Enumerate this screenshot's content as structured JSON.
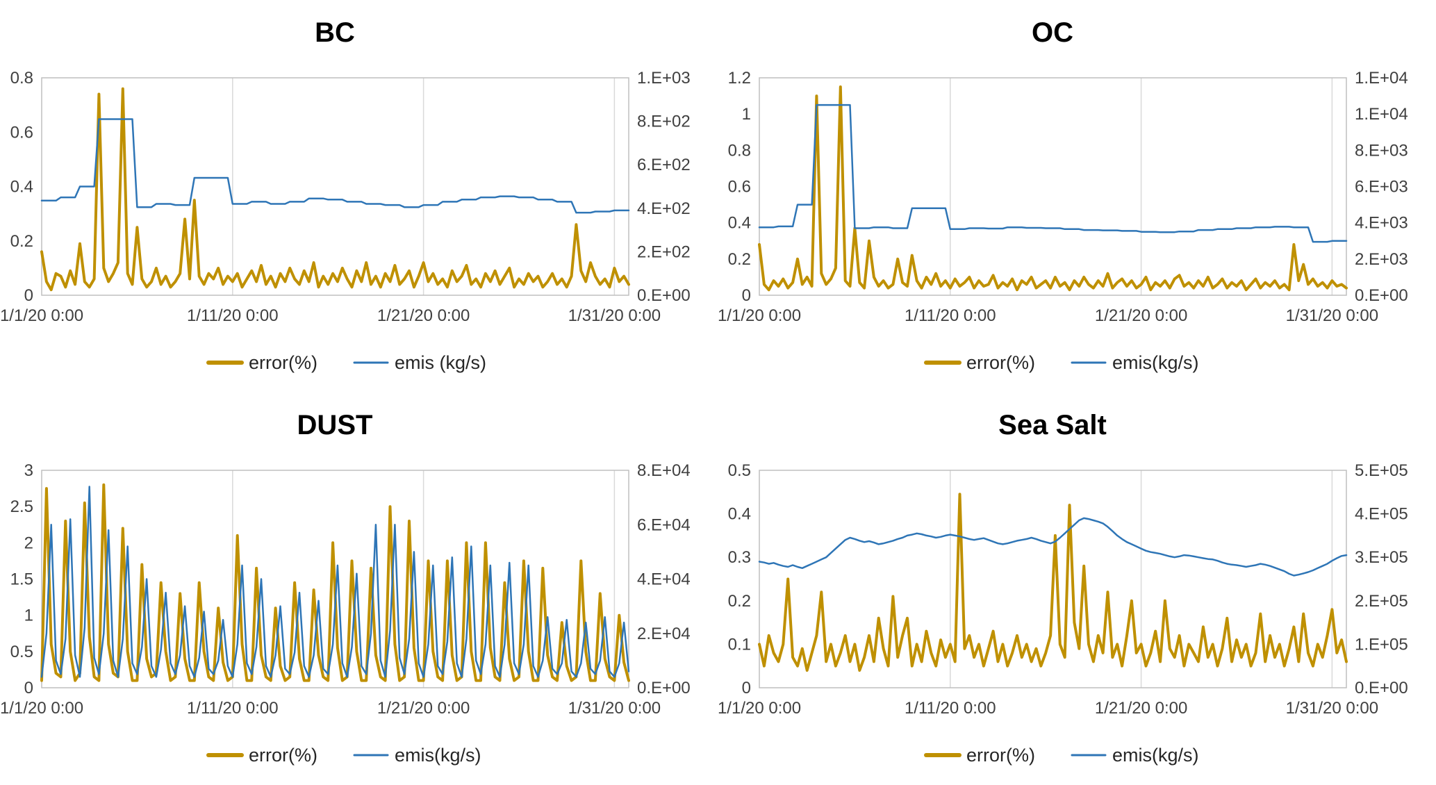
{
  "page": {
    "background": "#ffffff"
  },
  "colors": {
    "error_line": "#BF9000",
    "emis_line": "#2E75B6",
    "axis_text": "#404040",
    "title_text": "#000000",
    "gridline": "#D9D9D9",
    "plot_border": "#BFBFBF"
  },
  "chart_data": [
    {
      "type": "line",
      "title": "BC",
      "grid": "vertical-only",
      "legend_position": "bottom",
      "x_tick_labels": [
        "1/1/20 0:00",
        "1/11/20 0:00",
        "1/21/20 0:00",
        "1/31/20 0:00"
      ],
      "x_tick_days": [
        0,
        10,
        20,
        30
      ],
      "x_domain_days": [
        0,
        30.75
      ],
      "x_points_per_day": 4,
      "left_axis": {
        "ticks": [
          "0",
          "0.2",
          "0.4",
          "0.6",
          "0.8"
        ],
        "min": 0,
        "max": 0.8
      },
      "right_axis": {
        "ticks": [
          "0.E+00",
          "2.E+02",
          "4.E+02",
          "6.E+02",
          "8.E+02",
          "1.E+03"
        ],
        "min": 0,
        "max": 1000
      },
      "series": [
        {
          "name": "error(%)",
          "axis": "left",
          "color": "#BF9000",
          "width": 4,
          "values": [
            0.16,
            0.05,
            0.02,
            0.08,
            0.07,
            0.03,
            0.09,
            0.04,
            0.19,
            0.05,
            0.03,
            0.06,
            0.74,
            0.1,
            0.05,
            0.08,
            0.12,
            0.76,
            0.08,
            0.04,
            0.25,
            0.06,
            0.03,
            0.05,
            0.1,
            0.04,
            0.07,
            0.03,
            0.05,
            0.08,
            0.28,
            0.06,
            0.35,
            0.07,
            0.04,
            0.08,
            0.06,
            0.1,
            0.04,
            0.07,
            0.05,
            0.08,
            0.03,
            0.06,
            0.09,
            0.05,
            0.11,
            0.04,
            0.07,
            0.03,
            0.08,
            0.05,
            0.1,
            0.06,
            0.04,
            0.09,
            0.05,
            0.12,
            0.03,
            0.07,
            0.04,
            0.08,
            0.05,
            0.1,
            0.06,
            0.03,
            0.09,
            0.05,
            0.12,
            0.04,
            0.07,
            0.03,
            0.08,
            0.05,
            0.11,
            0.04,
            0.06,
            0.09,
            0.03,
            0.07,
            0.12,
            0.05,
            0.08,
            0.04,
            0.06,
            0.03,
            0.09,
            0.05,
            0.07,
            0.11,
            0.04,
            0.06,
            0.03,
            0.08,
            0.05,
            0.09,
            0.04,
            0.07,
            0.1,
            0.03,
            0.06,
            0.04,
            0.08,
            0.05,
            0.07,
            0.03,
            0.05,
            0.08,
            0.04,
            0.06,
            0.03,
            0.07,
            0.26,
            0.09,
            0.05,
            0.12,
            0.07,
            0.04,
            0.06,
            0.03,
            0.1,
            0.05,
            0.07,
            0.04
          ]
        },
        {
          "name": "emis (kg/s)",
          "axis": "right",
          "color": "#2E75B6",
          "width": 2.5,
          "step": true,
          "values_daily": [
            435,
            450,
            500,
            810,
            810,
            405,
            420,
            415,
            540,
            540,
            420,
            430,
            420,
            430,
            445,
            440,
            430,
            420,
            415,
            405,
            415,
            430,
            440,
            450,
            455,
            450,
            440,
            430,
            380,
            385,
            390
          ]
        }
      ]
    },
    {
      "type": "line",
      "title": "OC",
      "grid": "vertical-only",
      "legend_position": "bottom",
      "x_tick_labels": [
        "1/1/20 0:00",
        "1/11/20 0:00",
        "1/21/20 0:00",
        "1/31/20 0:00"
      ],
      "x_tick_days": [
        0,
        10,
        20,
        30
      ],
      "x_domain_days": [
        0,
        30.75
      ],
      "x_points_per_day": 4,
      "left_axis": {
        "ticks": [
          "0",
          "0.2",
          "0.4",
          "0.6",
          "0.8",
          "1",
          "1.2"
        ],
        "min": 0,
        "max": 1.2
      },
      "right_axis": {
        "ticks": [
          "0.E+00",
          "2.E+03",
          "4.E+03",
          "6.E+03",
          "8.E+03",
          "1.E+04",
          "1.E+04"
        ],
        "min": 0,
        "max": 12000
      },
      "series": [
        {
          "name": "error(%)",
          "axis": "left",
          "color": "#BF9000",
          "width": 4,
          "values": [
            0.28,
            0.06,
            0.03,
            0.08,
            0.05,
            0.09,
            0.04,
            0.07,
            0.2,
            0.06,
            0.1,
            0.05,
            1.1,
            0.12,
            0.06,
            0.09,
            0.15,
            1.15,
            0.08,
            0.05,
            0.37,
            0.07,
            0.04,
            0.3,
            0.1,
            0.05,
            0.08,
            0.04,
            0.06,
            0.2,
            0.07,
            0.05,
            0.22,
            0.08,
            0.04,
            0.1,
            0.06,
            0.12,
            0.05,
            0.08,
            0.04,
            0.09,
            0.05,
            0.07,
            0.1,
            0.04,
            0.08,
            0.05,
            0.06,
            0.11,
            0.04,
            0.07,
            0.05,
            0.09,
            0.03,
            0.08,
            0.06,
            0.1,
            0.04,
            0.06,
            0.08,
            0.04,
            0.1,
            0.05,
            0.07,
            0.03,
            0.08,
            0.05,
            0.1,
            0.06,
            0.04,
            0.08,
            0.05,
            0.12,
            0.04,
            0.07,
            0.09,
            0.05,
            0.08,
            0.04,
            0.06,
            0.1,
            0.03,
            0.07,
            0.05,
            0.08,
            0.04,
            0.09,
            0.11,
            0.05,
            0.07,
            0.04,
            0.08,
            0.05,
            0.1,
            0.04,
            0.06,
            0.09,
            0.04,
            0.07,
            0.05,
            0.08,
            0.03,
            0.06,
            0.09,
            0.04,
            0.07,
            0.05,
            0.08,
            0.04,
            0.06,
            0.03,
            0.28,
            0.08,
            0.17,
            0.06,
            0.09,
            0.05,
            0.07,
            0.04,
            0.08,
            0.05,
            0.06,
            0.04
          ]
        },
        {
          "name": "emis(kg/s)",
          "axis": "right",
          "color": "#2E75B6",
          "width": 2.5,
          "step": true,
          "values_daily": [
            3750,
            3800,
            5000,
            10500,
            10500,
            3700,
            3750,
            3700,
            4800,
            4800,
            3650,
            3700,
            3680,
            3750,
            3720,
            3700,
            3650,
            3600,
            3580,
            3550,
            3500,
            3480,
            3520,
            3600,
            3650,
            3700,
            3750,
            3780,
            3750,
            2950,
            3000
          ]
        }
      ]
    },
    {
      "type": "line",
      "title": "DUST",
      "grid": "vertical-only",
      "legend_position": "bottom",
      "x_tick_labels": [
        "1/1/20 0:00",
        "1/11/20 0:00",
        "1/21/20 0:00",
        "1/31/20 0:00"
      ],
      "x_tick_days": [
        0,
        10,
        20,
        30
      ],
      "x_domain_days": [
        0,
        30.75
      ],
      "x_points_per_day": 4,
      "left_axis": {
        "ticks": [
          "0",
          "0.5",
          "1",
          "1.5",
          "2",
          "2.5",
          "3"
        ],
        "min": 0,
        "max": 3
      },
      "right_axis": {
        "ticks": [
          "0.E+00",
          "2.E+04",
          "4.E+04",
          "6.E+04",
          "8.E+04"
        ],
        "min": 0,
        "max": 80000
      },
      "series": [
        {
          "name": "error(%)",
          "axis": "left",
          "color": "#BF9000",
          "width": 4,
          "values": [
            0.1,
            2.75,
            0.6,
            0.2,
            0.15,
            2.3,
            0.5,
            0.1,
            0.2,
            2.55,
            0.7,
            0.15,
            0.1,
            2.8,
            0.6,
            0.2,
            0.15,
            2.2,
            0.5,
            0.1,
            0.1,
            1.7,
            0.4,
            0.15,
            0.2,
            1.45,
            0.5,
            0.1,
            0.15,
            1.3,
            0.4,
            0.1,
            0.1,
            1.45,
            0.5,
            0.15,
            0.1,
            1.1,
            0.35,
            0.1,
            0.15,
            2.1,
            0.6,
            0.1,
            0.1,
            1.65,
            0.45,
            0.15,
            0.1,
            1.1,
            0.3,
            0.1,
            0.15,
            1.45,
            0.4,
            0.1,
            0.1,
            1.35,
            0.45,
            0.15,
            0.1,
            2.0,
            0.55,
            0.1,
            0.15,
            1.75,
            0.5,
            0.1,
            0.1,
            1.65,
            0.45,
            0.15,
            0.1,
            2.5,
            0.6,
            0.1,
            0.15,
            2.3,
            0.55,
            0.1,
            0.1,
            1.75,
            0.5,
            0.15,
            0.1,
            1.75,
            0.45,
            0.1,
            0.15,
            2.0,
            0.5,
            0.1,
            0.1,
            2.0,
            0.55,
            0.15,
            0.1,
            1.45,
            0.4,
            0.1,
            0.15,
            1.75,
            0.5,
            0.1,
            0.1,
            1.65,
            0.45,
            0.15,
            0.1,
            0.9,
            0.3,
            0.1,
            0.15,
            1.75,
            0.5,
            0.1,
            0.1,
            1.3,
            0.4,
            0.15,
            0.1,
            1.0,
            0.35,
            0.1
          ]
        },
        {
          "name": "emis(kg/s)",
          "axis": "right",
          "color": "#2E75B6",
          "width": 2.5,
          "values": [
            4000,
            20000,
            60000,
            10000,
            5000,
            18000,
            62000,
            12000,
            4000,
            22000,
            74000,
            11000,
            5000,
            20000,
            58000,
            10000,
            4000,
            18000,
            52000,
            9000,
            5000,
            15000,
            40000,
            8000,
            4000,
            14000,
            35000,
            9000,
            5000,
            12000,
            30000,
            8000,
            4000,
            11000,
            28000,
            7000,
            5000,
            10000,
            25000,
            8000,
            4000,
            16000,
            45000,
            9000,
            5000,
            15000,
            40000,
            8000,
            4000,
            12000,
            30000,
            7000,
            5000,
            13000,
            35000,
            8000,
            4000,
            12000,
            32000,
            7000,
            5000,
            16000,
            45000,
            9000,
            4000,
            15000,
            42000,
            8000,
            5000,
            20000,
            60000,
            10000,
            4000,
            21000,
            60000,
            11000,
            5000,
            18000,
            50000,
            9000,
            4000,
            16000,
            45000,
            8000,
            5000,
            17000,
            48000,
            9000,
            4000,
            18000,
            52000,
            10000,
            5000,
            16000,
            45000,
            8000,
            4000,
            16000,
            46000,
            9000,
            5000,
            16000,
            45000,
            8000,
            4000,
            10000,
            26000,
            7000,
            5000,
            9000,
            25000,
            6000,
            4000,
            9000,
            24000,
            7000,
            5000,
            10000,
            26000,
            6000,
            4000,
            9000,
            24000,
            6000
          ]
        }
      ]
    },
    {
      "type": "line",
      "title": "Sea Salt",
      "grid": "vertical-only",
      "legend_position": "bottom",
      "x_tick_labels": [
        "1/1/20 0:00",
        "1/11/20 0:00",
        "1/21/20 0:00",
        "1/31/20 0:00"
      ],
      "x_tick_days": [
        0,
        10,
        20,
        30
      ],
      "x_domain_days": [
        0,
        30.75
      ],
      "x_points_per_day": 4,
      "left_axis": {
        "ticks": [
          "0",
          "0.1",
          "0.2",
          "0.3",
          "0.4",
          "0.5"
        ],
        "min": 0,
        "max": 0.5
      },
      "right_axis": {
        "ticks": [
          "0.E+00",
          "1.E+05",
          "2.E+05",
          "3.E+05",
          "4.E+05",
          "5.E+05"
        ],
        "min": 0,
        "max": 500000
      },
      "series": [
        {
          "name": "error(%)",
          "axis": "left",
          "color": "#BF9000",
          "width": 4,
          "values": [
            0.1,
            0.05,
            0.12,
            0.08,
            0.06,
            0.1,
            0.25,
            0.07,
            0.05,
            0.09,
            0.04,
            0.08,
            0.12,
            0.22,
            0.06,
            0.1,
            0.05,
            0.08,
            0.12,
            0.06,
            0.1,
            0.04,
            0.07,
            0.12,
            0.06,
            0.16,
            0.09,
            0.05,
            0.21,
            0.07,
            0.12,
            0.16,
            0.05,
            0.1,
            0.06,
            0.13,
            0.08,
            0.05,
            0.11,
            0.07,
            0.1,
            0.06,
            0.445,
            0.09,
            0.12,
            0.07,
            0.1,
            0.05,
            0.09,
            0.13,
            0.06,
            0.1,
            0.05,
            0.08,
            0.12,
            0.07,
            0.1,
            0.06,
            0.09,
            0.05,
            0.08,
            0.12,
            0.35,
            0.1,
            0.07,
            0.42,
            0.15,
            0.09,
            0.28,
            0.1,
            0.06,
            0.12,
            0.08,
            0.22,
            0.07,
            0.1,
            0.05,
            0.12,
            0.2,
            0.08,
            0.1,
            0.05,
            0.08,
            0.13,
            0.06,
            0.2,
            0.09,
            0.07,
            0.12,
            0.05,
            0.1,
            0.08,
            0.06,
            0.14,
            0.07,
            0.1,
            0.05,
            0.09,
            0.16,
            0.06,
            0.11,
            0.07,
            0.1,
            0.05,
            0.08,
            0.17,
            0.06,
            0.12,
            0.07,
            0.1,
            0.05,
            0.09,
            0.14,
            0.06,
            0.17,
            0.08,
            0.05,
            0.1,
            0.07,
            0.12,
            0.18,
            0.08,
            0.11,
            0.06
          ]
        },
        {
          "name": "emis(kg/s)",
          "axis": "right",
          "color": "#2E75B6",
          "width": 2.5,
          "values": [
            290000,
            288000,
            285000,
            287000,
            283000,
            280000,
            278000,
            282000,
            278000,
            275000,
            280000,
            285000,
            290000,
            295000,
            300000,
            310000,
            320000,
            330000,
            340000,
            345000,
            342000,
            338000,
            335000,
            337000,
            334000,
            330000,
            332000,
            335000,
            338000,
            342000,
            345000,
            350000,
            352000,
            355000,
            353000,
            350000,
            348000,
            345000,
            347000,
            350000,
            352000,
            350000,
            348000,
            345000,
            342000,
            340000,
            342000,
            344000,
            340000,
            336000,
            332000,
            330000,
            332000,
            335000,
            338000,
            340000,
            342000,
            345000,
            342000,
            338000,
            335000,
            332000,
            336000,
            345000,
            355000,
            365000,
            375000,
            385000,
            390000,
            388000,
            385000,
            382000,
            378000,
            370000,
            360000,
            350000,
            342000,
            335000,
            330000,
            325000,
            320000,
            315000,
            312000,
            310000,
            308000,
            305000,
            302000,
            300000,
            302000,
            305000,
            304000,
            302000,
            300000,
            298000,
            296000,
            295000,
            292000,
            288000,
            285000,
            283000,
            282000,
            280000,
            278000,
            280000,
            282000,
            285000,
            283000,
            280000,
            276000,
            272000,
            268000,
            262000,
            258000,
            260000,
            263000,
            266000,
            270000,
            275000,
            280000,
            285000,
            292000,
            298000,
            303000,
            305000
          ]
        }
      ]
    }
  ]
}
